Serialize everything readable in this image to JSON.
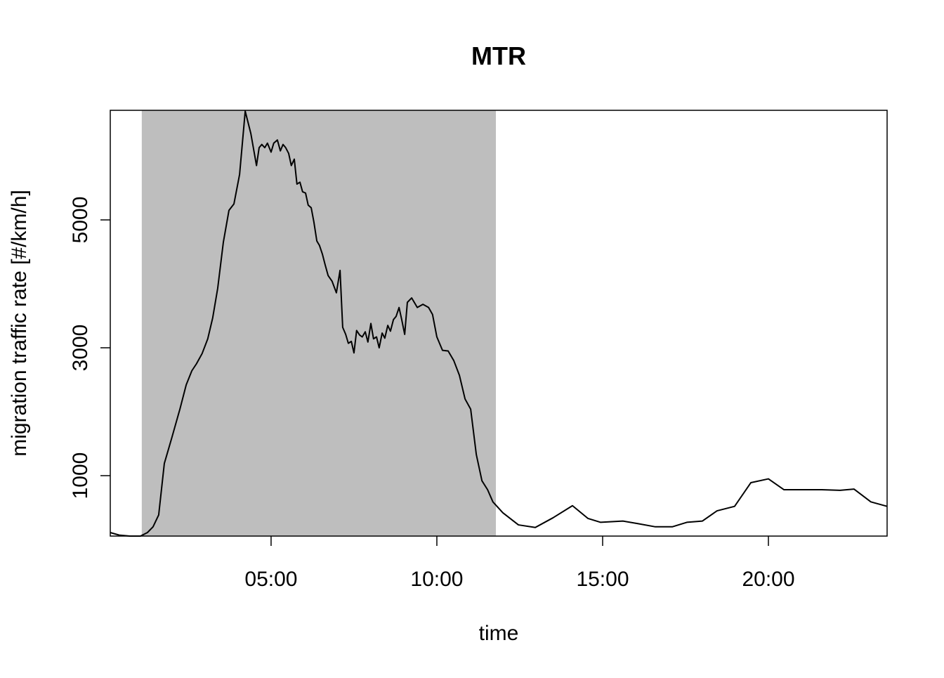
{
  "chart_data": {
    "type": "line",
    "title": "MTR",
    "xlabel": "time",
    "ylabel": "migration traffic rate [#/km/h]",
    "x": [
      0.15,
      0.42,
      0.74,
      1.06,
      1.27,
      1.44,
      1.61,
      1.78,
      2.01,
      2.25,
      2.44,
      2.61,
      2.75,
      2.92,
      3.09,
      3.24,
      3.39,
      3.56,
      3.73,
      3.88,
      4.05,
      4.22,
      4.39,
      4.56,
      4.64,
      4.72,
      4.81,
      4.89,
      5.0,
      5.08,
      5.19,
      5.28,
      5.36,
      5.44,
      5.53,
      5.61,
      5.7,
      5.78,
      5.87,
      5.95,
      6.04,
      6.12,
      6.21,
      6.29,
      6.38,
      6.46,
      6.55,
      6.63,
      6.72,
      6.84,
      6.97,
      7.08,
      7.16,
      7.25,
      7.33,
      7.42,
      7.5,
      7.58,
      7.67,
      7.75,
      7.84,
      7.92,
      8.01,
      8.09,
      8.18,
      8.26,
      8.35,
      8.43,
      8.52,
      8.6,
      8.69,
      8.77,
      8.86,
      8.94,
      9.03,
      9.11,
      9.24,
      9.41,
      9.58,
      9.75,
      9.87,
      10.0,
      10.17,
      10.34,
      10.51,
      10.68,
      10.85,
      11.02,
      11.19,
      11.36,
      11.53,
      11.69,
      11.99,
      12.46,
      12.97,
      13.5,
      14.09,
      14.56,
      14.94,
      15.61,
      16.06,
      16.59,
      17.1,
      17.54,
      18.01,
      18.45,
      18.98,
      19.47,
      20.0,
      20.47,
      21.02,
      21.61,
      22.16,
      22.58,
      23.09,
      23.58
    ],
    "values": [
      110,
      70,
      55,
      55,
      110,
      200,
      385,
      1190,
      1600,
      2040,
      2420,
      2640,
      2750,
      2910,
      3140,
      3470,
      3930,
      4650,
      5150,
      5250,
      5710,
      6700,
      6350,
      5850,
      6130,
      6180,
      6130,
      6200,
      6060,
      6200,
      6250,
      6080,
      6180,
      6130,
      6040,
      5850,
      5950,
      5560,
      5590,
      5440,
      5420,
      5230,
      5190,
      4970,
      4670,
      4600,
      4460,
      4300,
      4130,
      4040,
      3860,
      4210,
      3320,
      3210,
      3070,
      3100,
      2920,
      3270,
      3200,
      3170,
      3250,
      3090,
      3380,
      3140,
      3170,
      3000,
      3230,
      3150,
      3350,
      3260,
      3440,
      3490,
      3630,
      3440,
      3210,
      3710,
      3780,
      3630,
      3680,
      3630,
      3520,
      3170,
      2960,
      2950,
      2800,
      2570,
      2200,
      2040,
      1330,
      920,
      780,
      590,
      420,
      230,
      190,
      340,
      530,
      330,
      270,
      290,
      250,
      200,
      200,
      270,
      290,
      450,
      520,
      890,
      950,
      780,
      780,
      780,
      770,
      790,
      590,
      520
    ],
    "color": "#000000",
    "highlight": {
      "x": [
        1.1,
        11.78
      ],
      "color": "#bebebe"
    },
    "xlim": [
      0.15,
      23.58
    ],
    "xticks": [
      {
        "value": 5,
        "label": "05:00"
      },
      {
        "value": 10,
        "label": "10:00"
      },
      {
        "value": 15,
        "label": "15:00"
      },
      {
        "value": 20,
        "label": "20:00"
      }
    ],
    "ylim": [
      55,
      6714
    ],
    "yticks": [
      1000,
      3000,
      5000
    ]
  }
}
